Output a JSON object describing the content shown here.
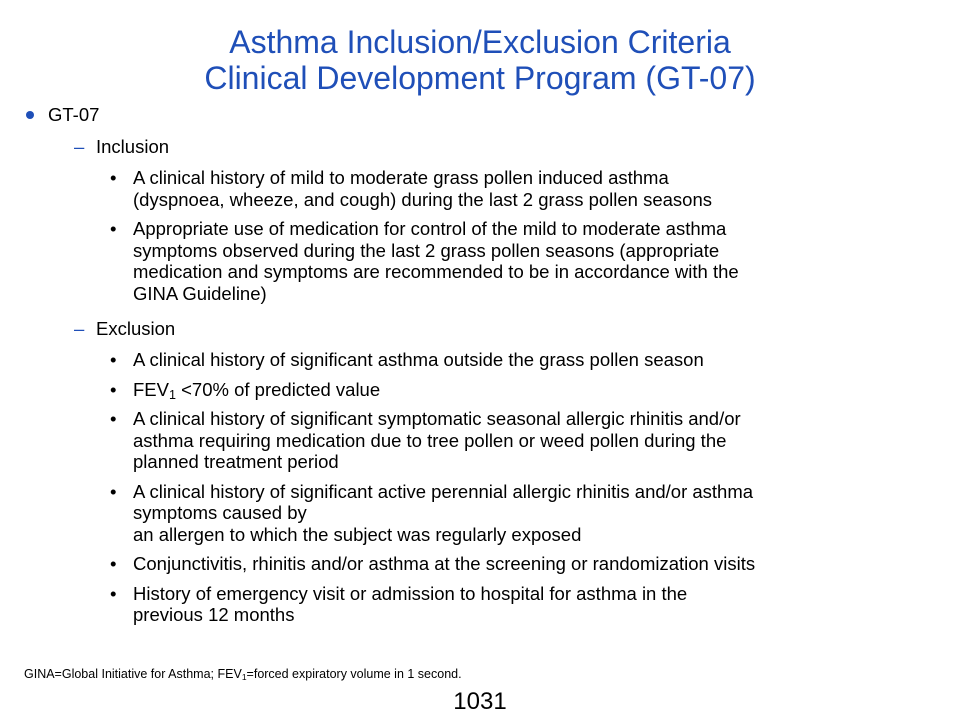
{
  "title": {
    "line1": "Asthma Inclusion/Exclusion Criteria",
    "line2": "Clinical Development Program (GT-07)"
  },
  "program": {
    "label": "GT-07",
    "inclusion": {
      "label": "Inclusion",
      "items": [
        {
          "lines": [
            "A clinical history of mild to moderate grass pollen induced asthma",
            "(dyspnoea, wheeze, and cough) during the last 2 grass pollen seasons"
          ]
        },
        {
          "lines": [
            "Appropriate use of medication for control of the mild to moderate asthma",
            "symptoms observed during the last 2 grass pollen seasons (appropriate",
            "medication and symptoms are recommended to be in accordance with the",
            "GINA Guideline)"
          ]
        }
      ]
    },
    "exclusion": {
      "label": "Exclusion",
      "items": [
        {
          "lines": [
            "A clinical history of significant asthma outside the grass pollen season"
          ]
        },
        {
          "fev_main": "FEV",
          "fev_sub": "1",
          "fev_rest": " <70% of predicted value"
        },
        {
          "lines": [
            "A clinical history of significant symptomatic seasonal allergic rhinitis and/or",
            "asthma requiring medication due to tree pollen or weed pollen during the",
            "planned treatment period"
          ]
        },
        {
          "lines": [
            "A clinical history of significant active perennial allergic rhinitis and/or asthma",
            "symptoms caused by",
            "an allergen to which the subject was regularly exposed"
          ]
        },
        {
          "lines": [
            "Conjunctivitis, rhinitis and/or asthma at the screening or randomization visits"
          ]
        },
        {
          "lines": [
            "History of emergency visit or admission to hospital for asthma in the",
            "previous 12 months"
          ]
        }
      ]
    }
  },
  "footnote": {
    "part1": "GINA=Global Initiative for Asthma; FEV",
    "sub": "1",
    "part2": "=forced expiratory volume in 1 second."
  },
  "page_number": "1031",
  "colors": {
    "accent": "#1f4fb8",
    "text": "#000000"
  }
}
